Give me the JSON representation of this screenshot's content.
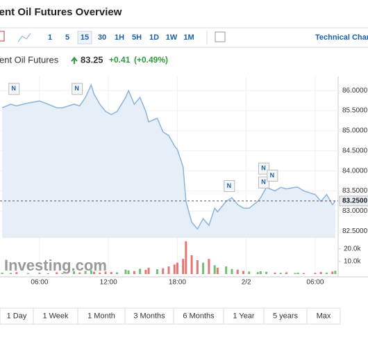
{
  "header": {
    "title": "Brent Oil Futures Overview"
  },
  "toolbar": {
    "intervals": [
      "1",
      "5",
      "15",
      "30",
      "1H",
      "5H",
      "1D",
      "1W",
      "1M"
    ],
    "active_interval_index": 2,
    "technical_link": "Technical Chart"
  },
  "quote": {
    "name": "Brent Oil Futures",
    "price": "83.25",
    "change": "+0.41",
    "change_percent": "(+0.49%)"
  },
  "chart_data": {
    "type": "area",
    "color": "#8bb4dc",
    "fill": "#e6eef7",
    "x": [
      2.75,
      3.5,
      4,
      5,
      6,
      6.75,
      7.5,
      8,
      9,
      9.5,
      10,
      10.5,
      10.75,
      11.25,
      11.75,
      12.25,
      12.75,
      13.5,
      13.75,
      14.25,
      14.75,
      15.25,
      15.5,
      16.25,
      16.75,
      17.25,
      17.75,
      18,
      18.5,
      18.75,
      19.25,
      19.75,
      20.25,
      20.75,
      21.25,
      21.5,
      22.25,
      22.75,
      23.25,
      23.75,
      24.25,
      25,
      25.25,
      25.75,
      26.5,
      27,
      27.5,
      28.25,
      28.5,
      29,
      30,
      30.5,
      31,
      31.5,
      31.75
    ],
    "values": [
      85.57,
      85.66,
      85.62,
      85.69,
      85.74,
      85.66,
      85.57,
      85.57,
      85.66,
      85.62,
      85.83,
      86.14,
      85.91,
      85.66,
      85.48,
      85.4,
      85.48,
      85.83,
      86.0,
      85.66,
      85.83,
      85.48,
      85.22,
      85.31,
      84.97,
      84.88,
      84.62,
      84.53,
      84.1,
      83.24,
      82.72,
      82.55,
      82.81,
      82.64,
      83.07,
      82.98,
      83.24,
      83.33,
      83.16,
      83.07,
      83.07,
      83.24,
      83.33,
      83.59,
      83.5,
      83.59,
      83.55,
      83.59,
      83.59,
      83.5,
      83.41,
      83.24,
      83.41,
      83.16,
      83.25
    ],
    "volume": [
      1200,
      900,
      1500,
      800,
      1100,
      600,
      1400,
      900,
      2200,
      1300,
      2500,
      3000,
      1800,
      1200,
      2000,
      1600,
      1400,
      3500,
      2800,
      2400,
      4200,
      3300,
      5000,
      3800,
      4600,
      6000,
      7500,
      9000,
      12000,
      26000,
      15000,
      11000,
      9000,
      12000,
      7000,
      5000,
      6000,
      4000,
      3500,
      2500,
      2000,
      1500,
      2200,
      1800,
      1200,
      1000,
      1400,
      900,
      1100,
      800,
      1000,
      1600,
      1200,
      2000,
      2600
    ],
    "xlim": [
      2.56,
      32
    ],
    "xticks": [
      {
        "value": 6,
        "label": "06:00"
      },
      {
        "value": 12,
        "label": "12:00"
      },
      {
        "value": 18,
        "label": "18:00"
      },
      {
        "value": 24,
        "label": "2/2"
      },
      {
        "value": 30,
        "label": "06:00"
      }
    ],
    "ylim": [
      82.33,
      86.35
    ],
    "yticks": [
      {
        "value": 86,
        "label": "86.0000"
      },
      {
        "value": 85.5,
        "label": "85.5000"
      },
      {
        "value": 85,
        "label": "85.0000"
      },
      {
        "value": 84.5,
        "label": "84.5000"
      },
      {
        "value": 84,
        "label": "84.0000"
      },
      {
        "value": 83.5,
        "label": "83.5000"
      },
      {
        "value": 83,
        "label": "83.0000"
      },
      {
        "value": 82.5,
        "label": "82.5000"
      }
    ],
    "volume_ylim": [
      0,
      27000
    ],
    "volume_ticks": [
      {
        "value": 20000,
        "label": "20.0k"
      },
      {
        "value": 10000,
        "label": "10.0k"
      }
    ],
    "last_price": {
      "value": 83.25,
      "label": "83.2500"
    },
    "news_markers": [
      {
        "x": 3.75,
        "label": "N"
      },
      {
        "x": 9.25,
        "label": "N"
      },
      {
        "x": 22.5,
        "label": "N"
      },
      {
        "x": 25.5,
        "label": "N"
      },
      {
        "x": 25.5,
        "label": "N"
      },
      {
        "x": 26.25,
        "label": "N"
      }
    ],
    "watermark": "Investing.com",
    "grid": true
  },
  "ranges": [
    "1 Day",
    "1 Week",
    "1 Month",
    "3 Months",
    "6 Months",
    "1 Year",
    "5 years",
    "Max"
  ]
}
